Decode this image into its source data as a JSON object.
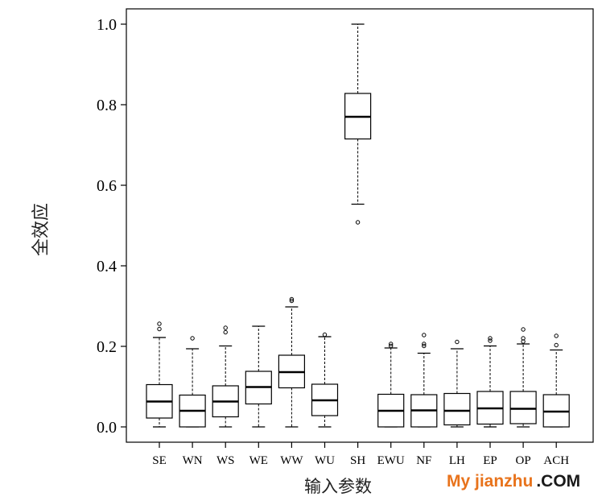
{
  "chart_data": {
    "type": "boxplot",
    "xlabel": "输入参数",
    "ylabel": "全效应",
    "ylim": [
      0,
      1.0
    ],
    "yticks": [
      "0.0",
      "0.2",
      "0.4",
      "0.6",
      "0.8",
      "1.0"
    ],
    "grid": false,
    "categories": [
      "SE",
      "WN",
      "WS",
      "WE",
      "WW",
      "WU",
      "SH",
      "EWU",
      "NF",
      "LH",
      "EP",
      "OP",
      "ACH"
    ],
    "boxes": [
      {
        "name": "SE",
        "min": 0.0,
        "q1": 0.022,
        "median": 0.063,
        "q3": 0.105,
        "max": 0.222,
        "outliers": [
          0.243,
          0.256
        ]
      },
      {
        "name": "WN",
        "min": 0.0,
        "q1": 0.0,
        "median": 0.04,
        "q3": 0.079,
        "max": 0.194,
        "outliers": [
          0.22
        ]
      },
      {
        "name": "WS",
        "min": 0.0,
        "q1": 0.025,
        "median": 0.063,
        "q3": 0.102,
        "max": 0.201,
        "outliers": [
          0.235,
          0.246
        ]
      },
      {
        "name": "WE",
        "min": 0.0,
        "q1": 0.057,
        "median": 0.099,
        "q3": 0.138,
        "max": 0.25,
        "outliers": []
      },
      {
        "name": "WW",
        "min": 0.0,
        "q1": 0.097,
        "median": 0.136,
        "q3": 0.178,
        "max": 0.298,
        "outliers": [
          0.313,
          0.317
        ]
      },
      {
        "name": "WU",
        "min": 0.0,
        "q1": 0.028,
        "median": 0.066,
        "q3": 0.106,
        "max": 0.224,
        "outliers": [
          0.229
        ]
      },
      {
        "name": "SH",
        "min": 0.553,
        "q1": 0.715,
        "median": 0.77,
        "q3": 0.828,
        "max": 1.0,
        "outliers": [
          0.508
        ]
      },
      {
        "name": "EWU",
        "min": 0.0,
        "q1": 0.0,
        "median": 0.04,
        "q3": 0.081,
        "max": 0.196,
        "outliers": [
          0.201,
          0.206
        ]
      },
      {
        "name": "NF",
        "min": 0.0,
        "q1": 0.0,
        "median": 0.041,
        "q3": 0.08,
        "max": 0.183,
        "outliers": [
          0.201,
          0.206,
          0.228
        ]
      },
      {
        "name": "LH",
        "min": 0.0,
        "q1": 0.005,
        "median": 0.04,
        "q3": 0.083,
        "max": 0.194,
        "outliers": [
          0.211
        ]
      },
      {
        "name": "EP",
        "min": 0.0,
        "q1": 0.007,
        "median": 0.046,
        "q3": 0.088,
        "max": 0.201,
        "outliers": [
          0.214,
          0.22
        ]
      },
      {
        "name": "OP",
        "min": 0.0,
        "q1": 0.008,
        "median": 0.045,
        "q3": 0.088,
        "max": 0.206,
        "outliers": [
          0.212,
          0.22,
          0.242
        ]
      },
      {
        "name": "ACH",
        "min": 0.0,
        "q1": 0.0,
        "median": 0.038,
        "q3": 0.08,
        "max": 0.191,
        "outliers": [
          0.203,
          0.226
        ]
      }
    ]
  },
  "watermark": {
    "part1": "My jianzhu",
    "part2": ".COM"
  }
}
